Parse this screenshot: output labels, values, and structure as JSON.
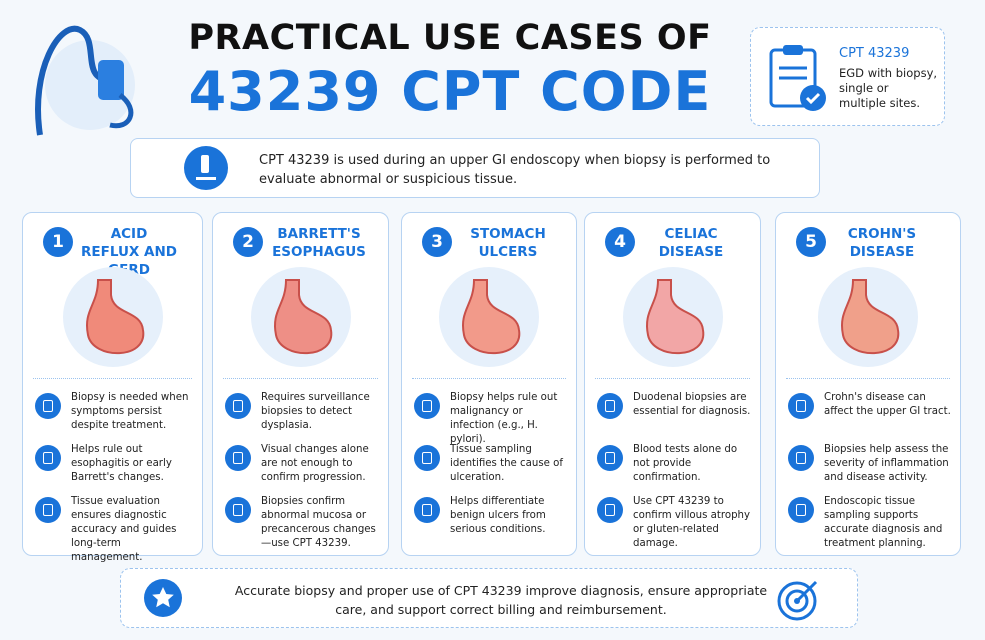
{
  "header": {
    "title_line1": "PRACTICAL USE CASES OF",
    "title_line2": "43239 CPT CODE"
  },
  "badge": {
    "code": "CPT 43239",
    "description": "EGD with biopsy, single or multiple sites."
  },
  "intro": {
    "text": "CPT 43239 is used during an upper GI endoscopy when biopsy is performed to evaluate abnormal or suspicious tissue."
  },
  "cards": [
    {
      "number": "1",
      "title": "ACID REFLUX AND GERD",
      "points": [
        "Biopsy is needed when symptoms persist despite treatment.",
        "Helps rule out esophagitis or early Barrett's changes.",
        "Tissue evaluation ensures diagnostic accuracy and guides long-term management."
      ]
    },
    {
      "number": "2",
      "title": "BARRETT'S ESOPHAGUS",
      "points": [
        "Requires surveillance biopsies to detect dysplasia.",
        "Visual changes alone are not enough to confirm progression.",
        "Biopsies confirm abnormal mucosa or precancerous changes—use CPT 43239."
      ]
    },
    {
      "number": "3",
      "title": "STOMACH ULCERS",
      "points": [
        "Biopsy helps rule out malignancy or infection (e.g., H. pylori).",
        "Tissue sampling identifies the cause of ulceration.",
        "Helps differentiate benign ulcers from serious conditions."
      ]
    },
    {
      "number": "4",
      "title": "CELIAC DISEASE",
      "points": [
        "Duodenal biopsies are essential for diagnosis.",
        "Blood tests alone do not provide confirmation.",
        "Use CPT 43239 to confirm villous atrophy or gluten-related damage."
      ]
    },
    {
      "number": "5",
      "title": "CROHN'S DISEASE",
      "points": [
        "Crohn's disease can affect the upper GI tract.",
        "Biopsies help assess the severity of inflammation and disease activity.",
        "Endoscopic tissue sampling supports accurate diagnosis and treatment planning."
      ]
    }
  ],
  "footer": {
    "text": "Accurate biopsy and proper use of CPT 43239 improve diagnosis, ensure appropriate care, and support correct billing and reimbursement."
  }
}
